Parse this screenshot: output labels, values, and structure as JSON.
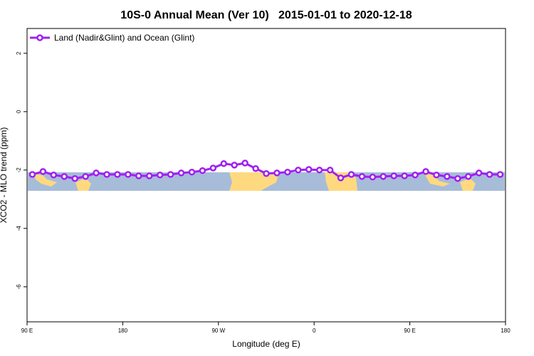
{
  "chart_data": {
    "type": "line",
    "title": "10S-0 Annual Mean (Ver 10)   2015-01-01 to 2020-12-18",
    "x_label": "Longitude (deg E)",
    "y_label": "XCO2 - MLO trend (ppm)",
    "x": [
      95,
      105,
      115,
      125,
      135,
      145,
      155,
      165,
      175,
      185,
      195,
      205,
      215,
      225,
      235,
      245,
      255,
      265,
      275,
      285,
      295,
      305,
      315,
      325,
      335,
      345,
      355,
      365,
      375,
      385,
      395,
      405,
      415,
      425,
      435,
      445,
      455,
      465,
      475,
      485,
      495,
      505,
      515,
      525,
      535
    ],
    "series": [
      {
        "name": "Land (Nadir&Glint) and Ocean (Glint)",
        "color": "#a020f0",
        "values": [
          -2.15,
          -2.05,
          -2.17,
          -2.22,
          -2.29,
          -2.22,
          -2.1,
          -2.15,
          -2.15,
          -2.15,
          -2.2,
          -2.2,
          -2.17,
          -2.15,
          -2.1,
          -2.07,
          -2.02,
          -1.93,
          -1.78,
          -1.83,
          -1.76,
          -1.95,
          -2.12,
          -2.1,
          -2.07,
          -2.0,
          -1.98,
          -2.0,
          -2.0,
          -2.27,
          -2.15,
          -2.22,
          -2.24,
          -2.22,
          -2.2,
          -2.2,
          -2.17,
          -2.05,
          -2.17,
          -2.22,
          -2.29,
          -2.22,
          -2.1,
          -2.15,
          -2.15
        ]
      }
    ],
    "xlim": [
      90,
      540
    ],
    "ylim": [
      2.85,
      -7.2
    ],
    "xticks": [
      {
        "value": 90,
        "label": "90 E"
      },
      180,
      {
        "value": 270,
        "label": "90 W"
      },
      {
        "value": 360,
        "label": "0"
      },
      {
        "value": 450,
        "label": "90 E"
      },
      {
        "value": 540,
        "label": "180"
      }
    ],
    "yticks": [
      2,
      0,
      -2,
      -4,
      -6
    ],
    "legend": "top-left",
    "grid": false
  }
}
